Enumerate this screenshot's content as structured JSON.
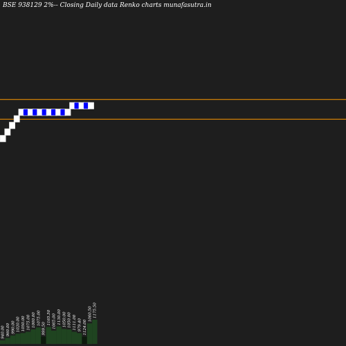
{
  "header": {
    "title": "BSE 938129 2%-- Closing Daily data  Renko  charts munafasutra.in"
  },
  "chart_data": {
    "type": "renko",
    "title": "BSE 938129 2%-- Closing Daily data  Renko  charts munafasutra.in",
    "brick_size_pct": 2,
    "price_range": [
      900,
      1300
    ],
    "bricks": [
      {
        "dir": "up",
        "price": 1000
      },
      {
        "dir": "up",
        "price": 1020
      },
      {
        "dir": "up",
        "price": 1040
      },
      {
        "dir": "up",
        "price": 1060
      },
      {
        "dir": "up",
        "price": 1080
      },
      {
        "dir": "down",
        "price": 1060
      },
      {
        "dir": "up",
        "price": 1080
      },
      {
        "dir": "down",
        "price": 1060
      },
      {
        "dir": "up",
        "price": 1080
      },
      {
        "dir": "down",
        "price": 1060
      },
      {
        "dir": "up",
        "price": 1080
      },
      {
        "dir": "down",
        "price": 1060
      },
      {
        "dir": "up",
        "price": 1080
      },
      {
        "dir": "down",
        "price": 1060
      },
      {
        "dir": "up",
        "price": 1080
      },
      {
        "dir": "up",
        "price": 1100
      },
      {
        "dir": "down",
        "price": 1080
      },
      {
        "dir": "up",
        "price": 1100
      },
      {
        "dir": "down",
        "price": 1080
      },
      {
        "dir": "up",
        "price": 1100
      }
    ],
    "reference_lines": [
      1110,
      1050
    ],
    "colors": {
      "background": "#1e1e1e",
      "up_brick": "#ffffff",
      "down_brick": "#0000ff",
      "reference_line": "#ff9900",
      "volume_bar": "#1f4420",
      "volume_bar_dark": "#0c1a0c"
    },
    "volume": [
      {
        "label": "940.00",
        "value": 0.15
      },
      {
        "label": "960.00",
        "value": 0.25
      },
      {
        "label": "990.00",
        "value": 0.35
      },
      {
        "label": "1020.00",
        "value": 0.42
      },
      {
        "label": "1050.00",
        "value": 0.45
      },
      {
        "label": "1075.00",
        "value": 0.5
      },
      {
        "label": "1000.00",
        "value": 0.6
      },
      {
        "label": "1075.00",
        "value": 0.68
      },
      {
        "label": "999.50",
        "value": 0.3
      },
      {
        "label": "1165.50",
        "value": 0.7
      },
      {
        "label": "1065.00",
        "value": 0.55
      },
      {
        "label": "1130.00",
        "value": 0.72
      },
      {
        "label": "1050.00",
        "value": 0.62
      },
      {
        "label": "1050.00",
        "value": 0.6
      },
      {
        "label": "1111.00",
        "value": 0.5
      },
      {
        "label": "979.40",
        "value": 0.45
      },
      {
        "label": "1124.00",
        "value": 0.3
      },
      {
        "label": "1060.50",
        "value": 0.85
      },
      {
        "label": "1175.50",
        "value": 1.0
      }
    ]
  }
}
